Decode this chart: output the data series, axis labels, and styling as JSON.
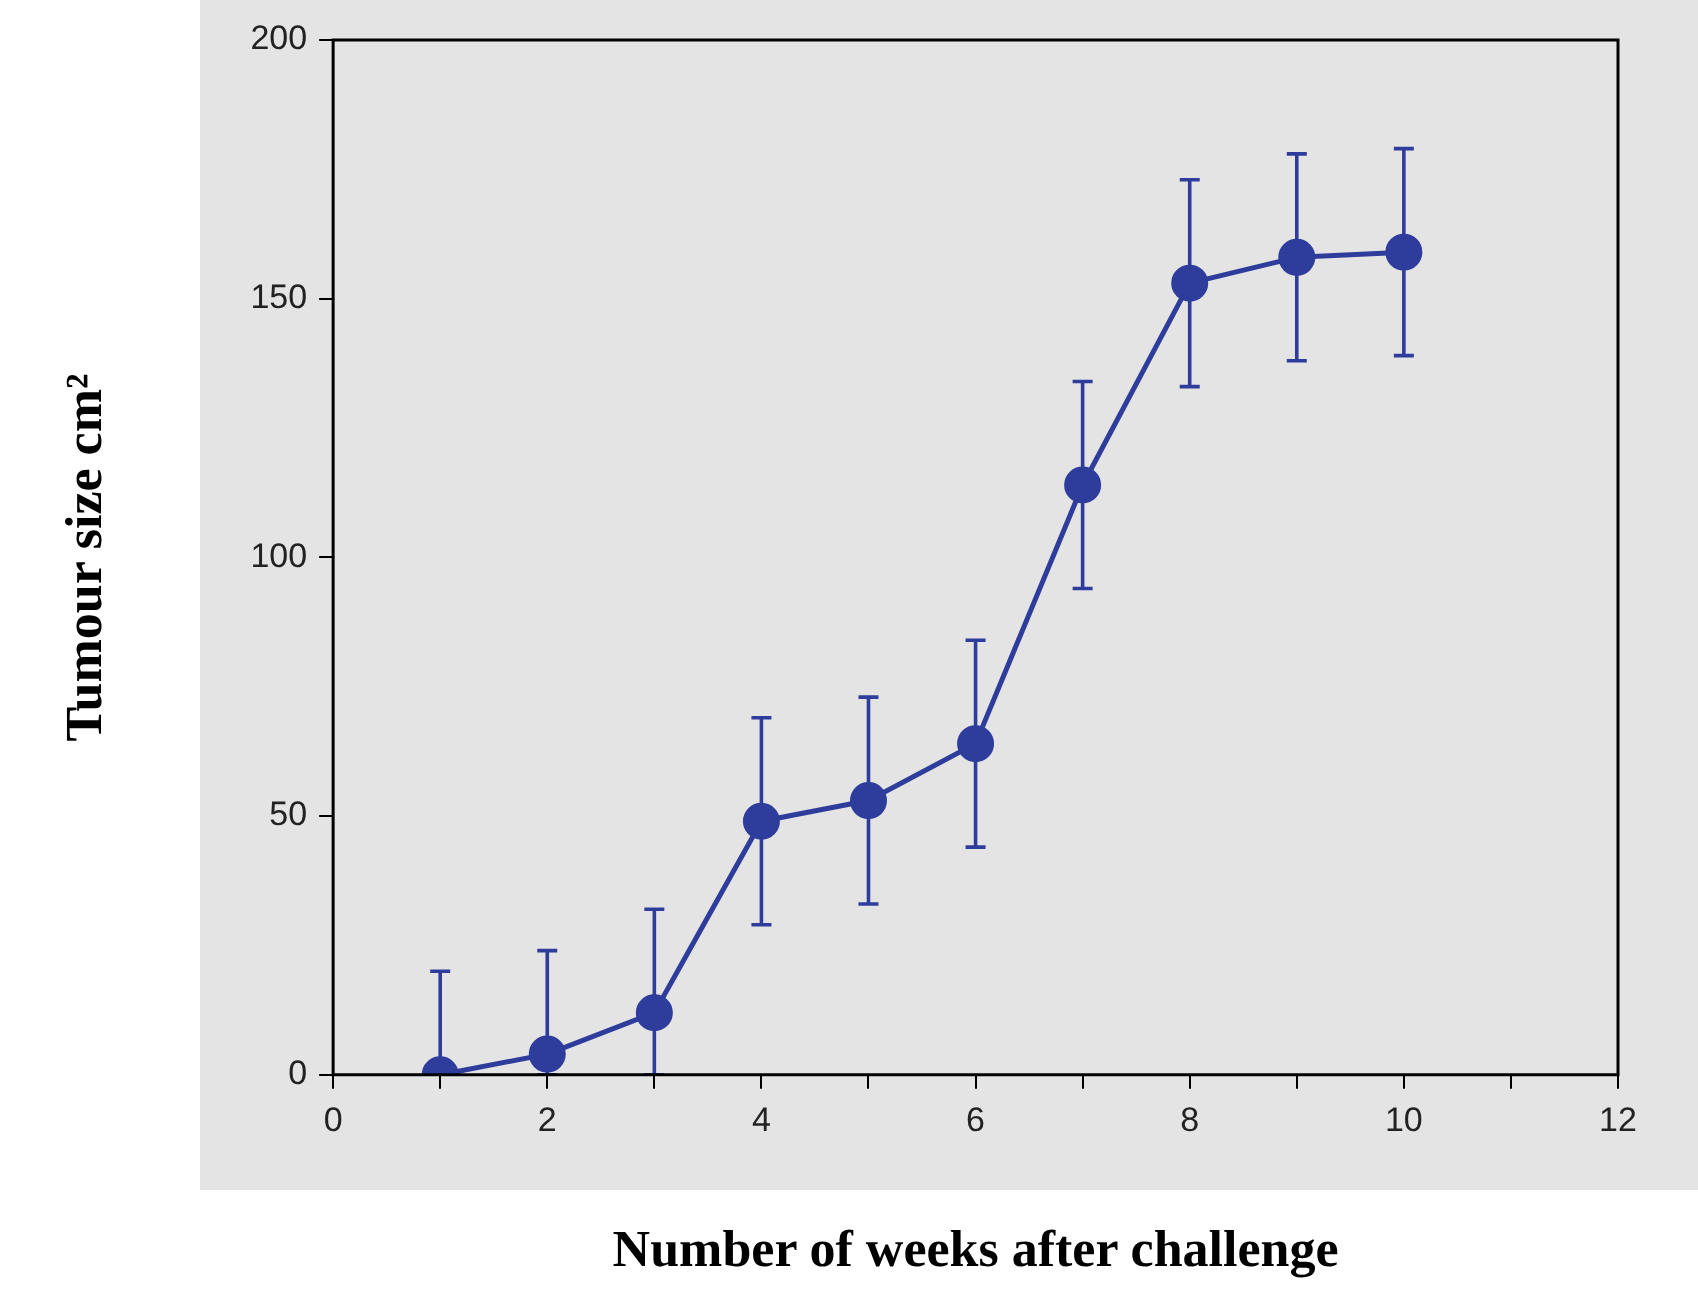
{
  "chart_data": {
    "type": "line",
    "xlabel": "Number of weeks after challenge",
    "ylabel": "Tumour size cm²",
    "x": [
      1,
      2,
      3,
      4,
      5,
      6,
      7,
      8,
      9,
      10
    ],
    "series": [
      {
        "color": "#2e3d9c",
        "values": [
          0,
          4,
          12,
          49,
          53,
          64,
          114,
          153,
          158,
          159
        ],
        "errors": [
          [
            0,
            20
          ],
          [
            0,
            24
          ],
          [
            0,
            32
          ],
          20,
          20,
          20,
          20,
          20,
          20,
          20
        ]
      }
    ],
    "xlim": [
      0,
      12
    ],
    "xticks": [
      0,
      {
        "value": 1,
        "label": null
      },
      2,
      {
        "value": 3,
        "label": null
      },
      4,
      {
        "value": 5,
        "label": null
      },
      6,
      {
        "value": 7,
        "label": null
      },
      8,
      {
        "value": 9,
        "label": null
      },
      10,
      {
        "value": 11,
        "label": null
      },
      12
    ],
    "ylim": [
      0,
      200
    ],
    "yticks": [
      0,
      50,
      100,
      150,
      200
    ],
    "grid": false,
    "legend": false,
    "marker": "circle",
    "line_style": "solid"
  }
}
